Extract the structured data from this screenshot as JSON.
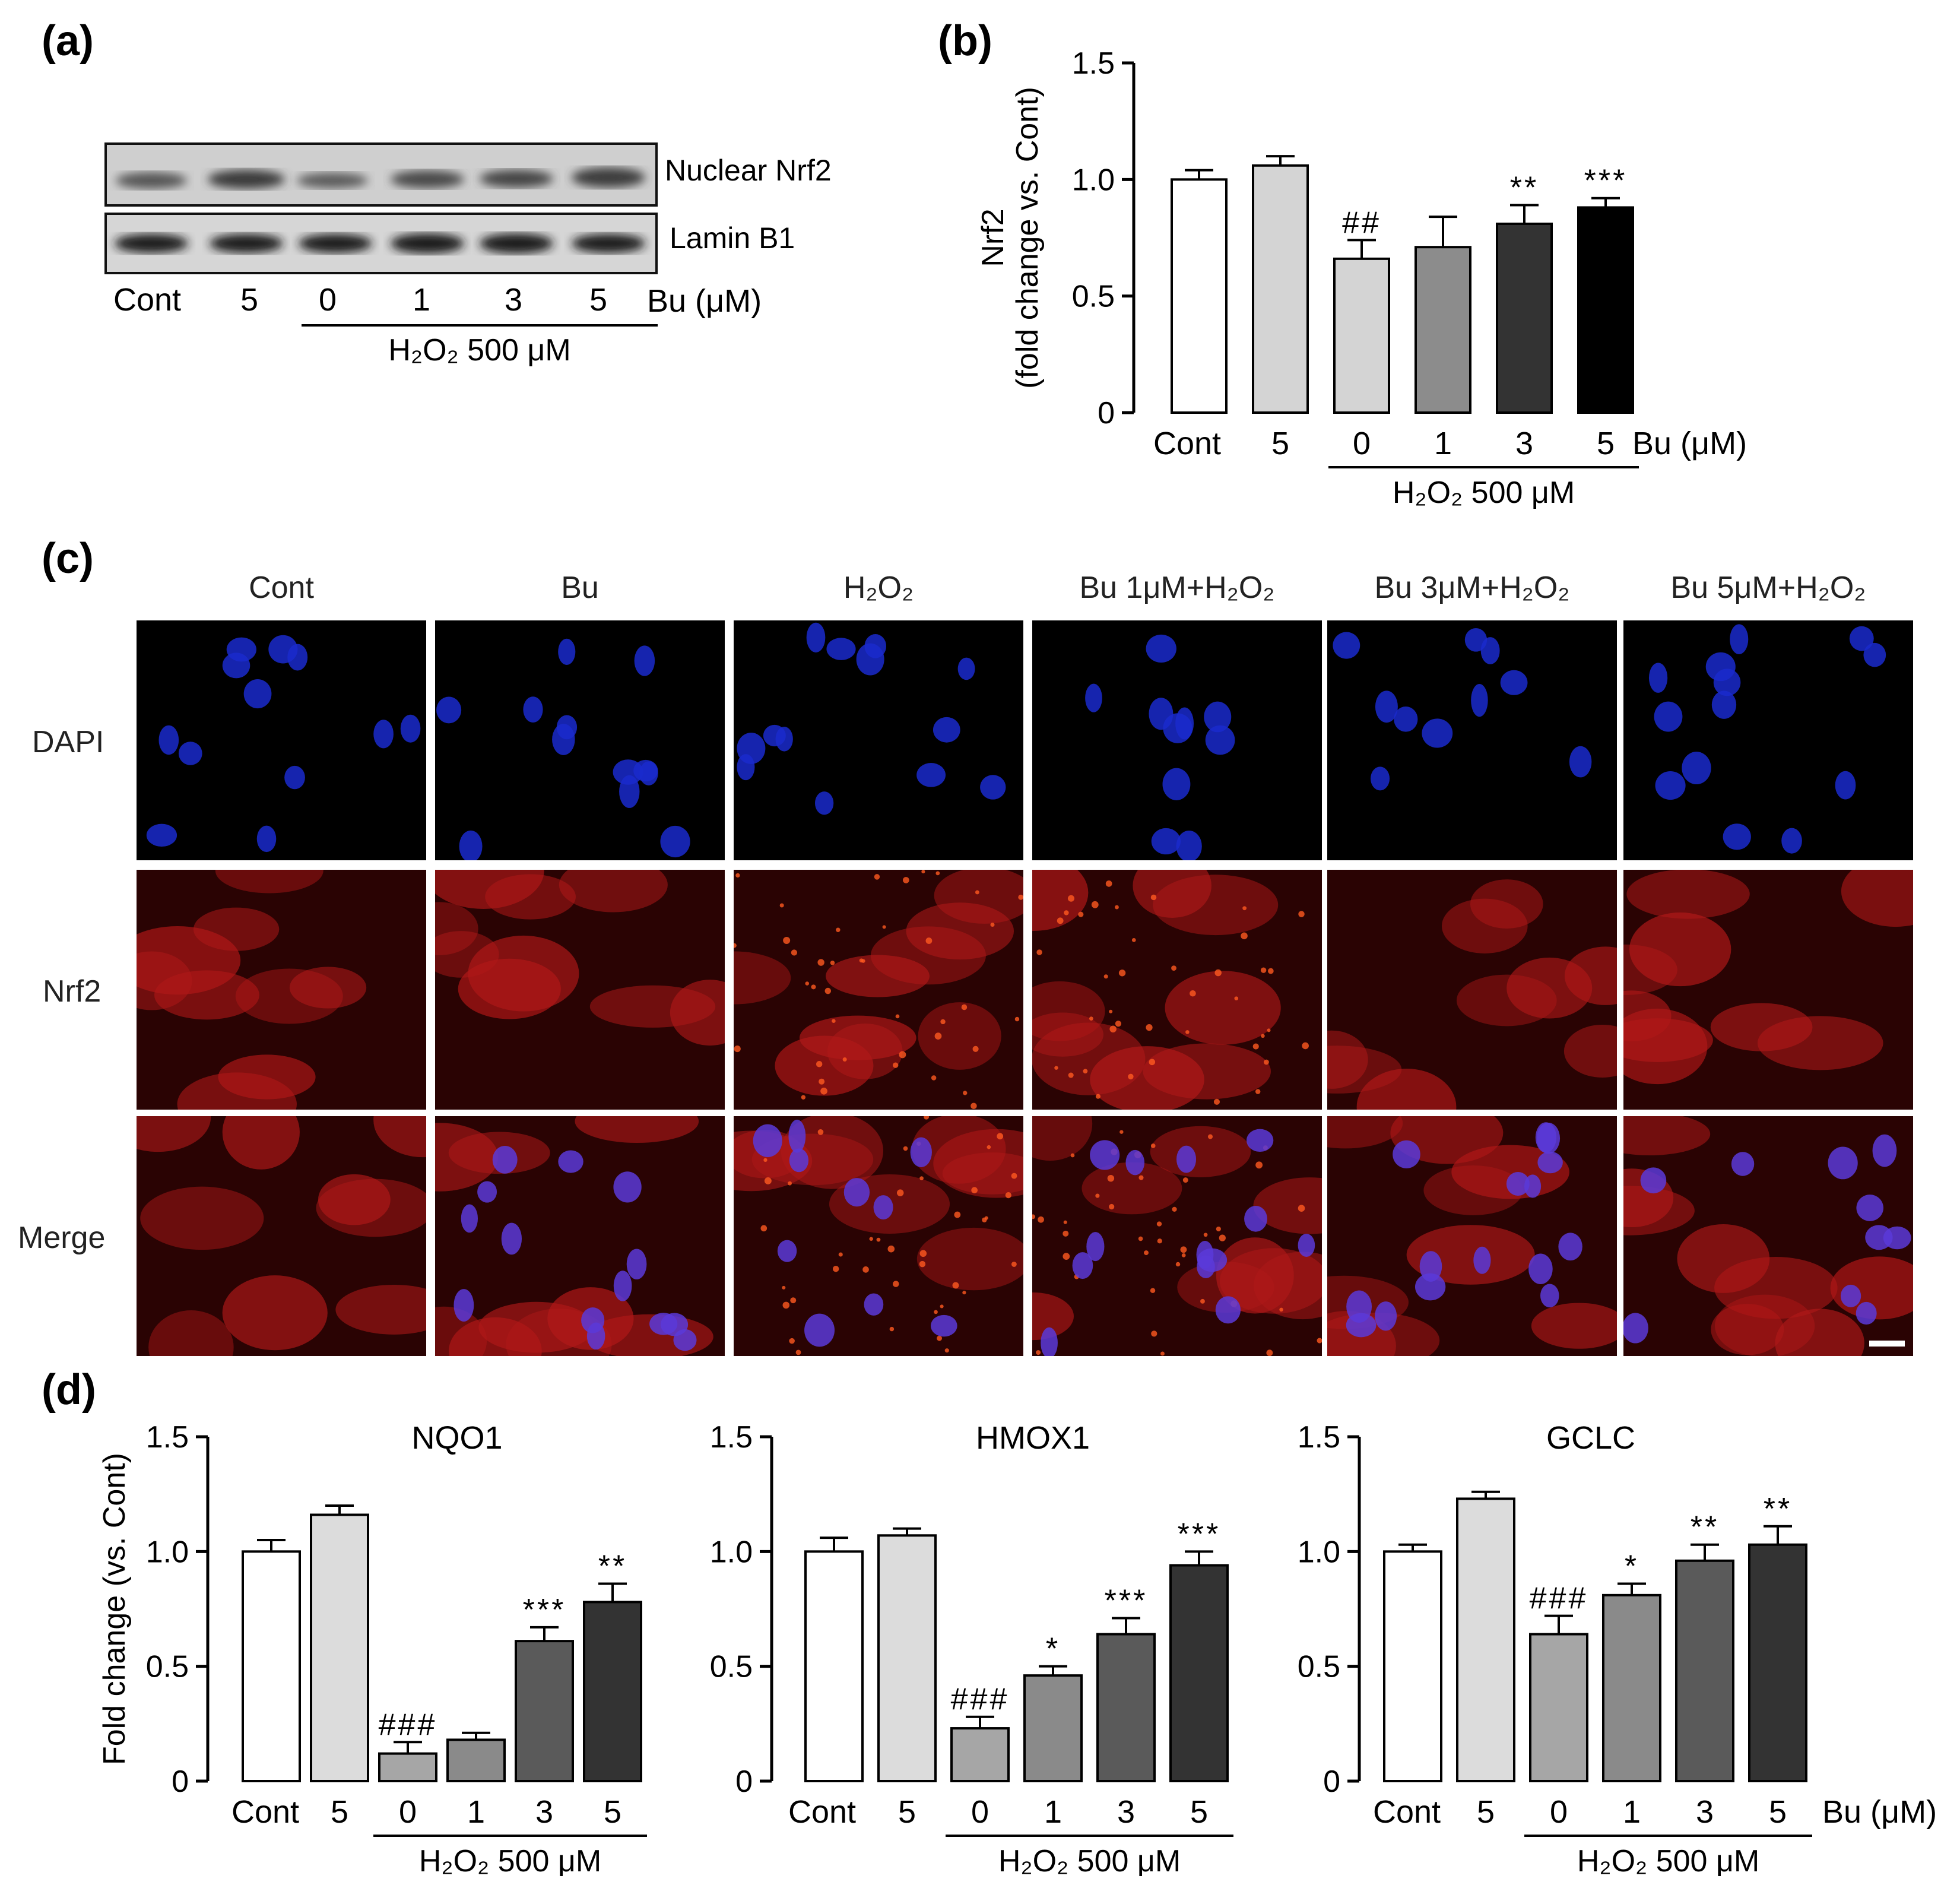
{
  "panel_labels": {
    "a": "(a)",
    "b": "(b)",
    "c": "(c)",
    "d": "(d)"
  },
  "western_blot": {
    "bands": [
      "Nuclear Nrf2",
      "Lamin B1"
    ],
    "lanes": [
      "Cont",
      "5",
      "0",
      "1",
      "3",
      "5"
    ],
    "unit_label": "Bu (μM)",
    "treatment": "H₂O₂ 500 μM"
  },
  "microscopy": {
    "columns": [
      "Cont",
      "Bu",
      "H₂O₂",
      "Bu  1μM+H₂O₂",
      "Bu 3μM+H₂O₂",
      "Bu 5μM+H₂O₂"
    ],
    "rows": [
      "DAPI",
      "Nrf2",
      "Merge"
    ],
    "colors": {
      "dapi": "#1a2acc",
      "nrf2": "#b01818",
      "merge_nucleus": "#5a3ad8"
    }
  },
  "chart_data": [
    {
      "id": "b",
      "type": "bar",
      "title": "",
      "ylabel": [
        "Nrf2",
        "(fold change vs. Cont)"
      ],
      "ylim": [
        0,
        1.5
      ],
      "yticks": [
        "0",
        "0.5",
        "1.0",
        "1.5"
      ],
      "categories": [
        "Cont",
        "5",
        "0",
        "1",
        "3",
        "5"
      ],
      "unit_label": "Bu (μM)",
      "treatment": "H₂O₂ 500 μM",
      "values": [
        1.0,
        1.06,
        0.66,
        0.71,
        0.81,
        0.88
      ],
      "errors": [
        0.04,
        0.04,
        0.08,
        0.13,
        0.08,
        0.04
      ],
      "annotations": [
        "",
        "",
        "##",
        "",
        "**",
        "***"
      ],
      "colors": [
        "#ffffff",
        "#d4d4d4",
        "#d4d4d4",
        "#8c8c8c",
        "#333333",
        "#000000"
      ]
    },
    {
      "id": "d1",
      "type": "bar",
      "title": "NQO1",
      "ylabel": "Fold change (vs. Cont)",
      "ylim": [
        0,
        1.5
      ],
      "yticks": [
        "0",
        "0.5",
        "1.0",
        "1.5"
      ],
      "categories": [
        "Cont",
        "5",
        "0",
        "1",
        "3",
        "5"
      ],
      "unit_label": "",
      "treatment": "H₂O₂ 500 μM",
      "values": [
        1.0,
        1.16,
        0.12,
        0.18,
        0.61,
        0.78
      ],
      "errors": [
        0.05,
        0.04,
        0.05,
        0.03,
        0.06,
        0.08
      ],
      "annotations": [
        "",
        "",
        "###",
        "",
        "***",
        "**"
      ],
      "colors": [
        "#ffffff",
        "#dcdcdc",
        "#a6a6a6",
        "#8a8a8a",
        "#5a5a5a",
        "#333333"
      ]
    },
    {
      "id": "d2",
      "type": "bar",
      "title": "HMOX1",
      "ylabel": "",
      "ylim": [
        0,
        1.5
      ],
      "yticks": [
        "0",
        "0.5",
        "1.0",
        "1.5"
      ],
      "categories": [
        "Cont",
        "5",
        "0",
        "1",
        "3",
        "5"
      ],
      "unit_label": "",
      "treatment": "H₂O₂ 500 μM",
      "values": [
        1.0,
        1.07,
        0.23,
        0.46,
        0.64,
        0.94
      ],
      "errors": [
        0.06,
        0.03,
        0.05,
        0.04,
        0.07,
        0.06
      ],
      "annotations": [
        "",
        "",
        "###",
        "*",
        "***",
        "***"
      ],
      "colors": [
        "#ffffff",
        "#dcdcdc",
        "#a6a6a6",
        "#8a8a8a",
        "#5a5a5a",
        "#333333"
      ]
    },
    {
      "id": "d3",
      "type": "bar",
      "title": "GCLC",
      "ylabel": "",
      "ylim": [
        0,
        1.5
      ],
      "yticks": [
        "0",
        "0.5",
        "1.0",
        "1.5"
      ],
      "categories": [
        "Cont",
        "5",
        "0",
        "1",
        "3",
        "5"
      ],
      "unit_label": "Bu (μM)",
      "treatment": "H₂O₂ 500 μM",
      "values": [
        1.0,
        1.23,
        0.64,
        0.81,
        0.96,
        1.03
      ],
      "errors": [
        0.03,
        0.03,
        0.08,
        0.05,
        0.07,
        0.08
      ],
      "annotations": [
        "",
        "",
        "###",
        "*",
        "**",
        "**"
      ],
      "colors": [
        "#ffffff",
        "#dcdcdc",
        "#a6a6a6",
        "#8a8a8a",
        "#5a5a5a",
        "#333333"
      ]
    }
  ]
}
